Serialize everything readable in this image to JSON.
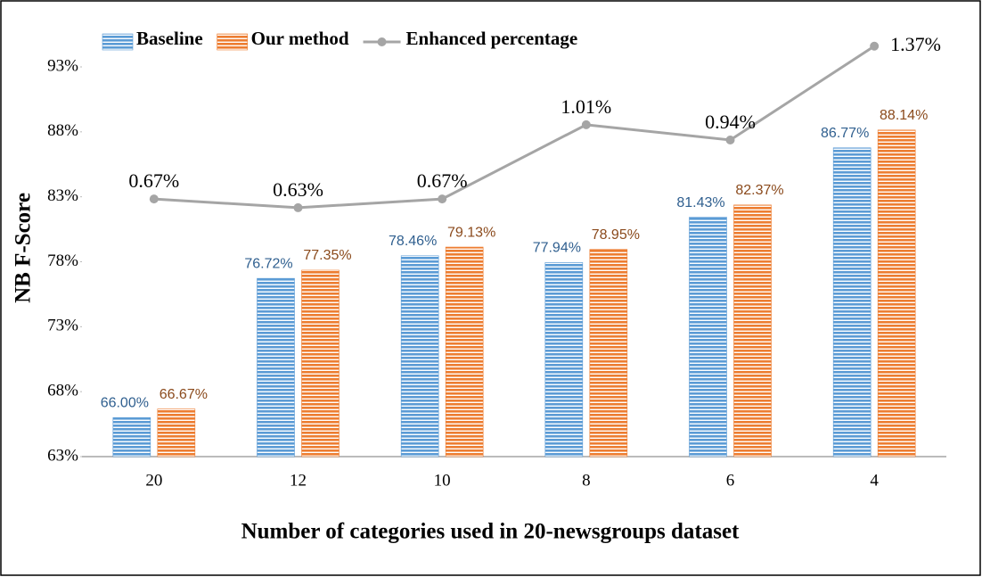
{
  "chart_data": {
    "type": "bar",
    "categories": [
      "20",
      "12",
      "10",
      "8",
      "6",
      "4"
    ],
    "series": [
      {
        "name": "Baseline",
        "color": "#5b9bd5",
        "label_color": "#2f5f8f",
        "values": [
          66.0,
          76.72,
          78.46,
          77.94,
          81.43,
          86.77
        ],
        "value_labels": [
          "66.00%",
          "76.72%",
          "78.46%",
          "77.94%",
          "81.43%",
          "86.77%"
        ]
      },
      {
        "name": "Our method",
        "color": "#ed7d31",
        "label_color": "#8b4a1c",
        "values": [
          66.67,
          77.35,
          79.13,
          78.95,
          82.37,
          88.14
        ],
        "value_labels": [
          "66.67%",
          "77.35%",
          "79.13%",
          "78.95%",
          "82.37%",
          "88.14%"
        ]
      },
      {
        "name": "Enhanced percentage",
        "type": "line",
        "axis": "y2",
        "color": "#a5a5a5",
        "values": [
          0.67,
          0.63,
          0.67,
          1.01,
          0.94,
          1.37
        ],
        "value_labels": [
          "0.67%",
          "0.63%",
          "0.67%",
          "1.01%",
          "0.94%",
          "1.37%"
        ]
      }
    ],
    "xlabel": "Number of categories used in 20-newsgroups dataset",
    "ylabel": "NB F-Score",
    "ylim": [
      63,
      93
    ],
    "yticks": [
      {
        "value": 63,
        "label": "63%"
      },
      {
        "value": 68,
        "label": "68%"
      },
      {
        "value": 73,
        "label": "73%"
      },
      {
        "value": 78,
        "label": "78%"
      },
      {
        "value": 83,
        "label": "83%"
      },
      {
        "value": 88,
        "label": "88%"
      },
      {
        "value": 93,
        "label": "93%"
      }
    ],
    "y2lim": [
      -0.51,
      1.275
    ],
    "grid": false,
    "legend": "top-left"
  }
}
